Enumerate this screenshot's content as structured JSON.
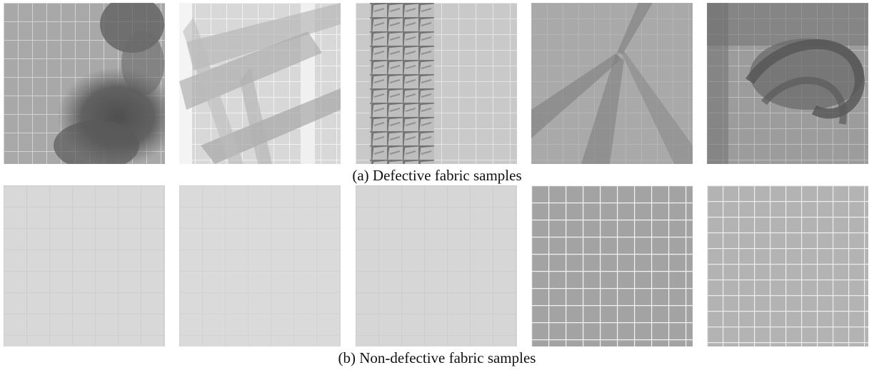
{
  "figure": {
    "caption_a": "(a) Defective fabric samples",
    "caption_b": "(b) Non-defective fabric samples",
    "defective_samples": [
      {
        "kind": "dark-stain-defect",
        "base_color": "#a7a7a7"
      },
      {
        "kind": "folded-film-defect",
        "base_color": "#d9d9d9"
      },
      {
        "kind": "wrinkle-defect",
        "base_color": "#c9c9c9"
      },
      {
        "kind": "crease-defect",
        "base_color": "#a9a9a9"
      },
      {
        "kind": "tangled-film-defect",
        "base_color": "#9c9c9c"
      }
    ],
    "non_defective_samples": [
      {
        "kind": "plain-light-grid",
        "base_color": "#d8d8d8"
      },
      {
        "kind": "plain-light-grid",
        "base_color": "#dadada"
      },
      {
        "kind": "plain-light-grid",
        "base_color": "#d6d6d6"
      },
      {
        "kind": "white-grid-fabric",
        "base_color": "#a3a3a3"
      },
      {
        "kind": "white-grid-fabric",
        "base_color": "#b3b3b3"
      }
    ]
  }
}
